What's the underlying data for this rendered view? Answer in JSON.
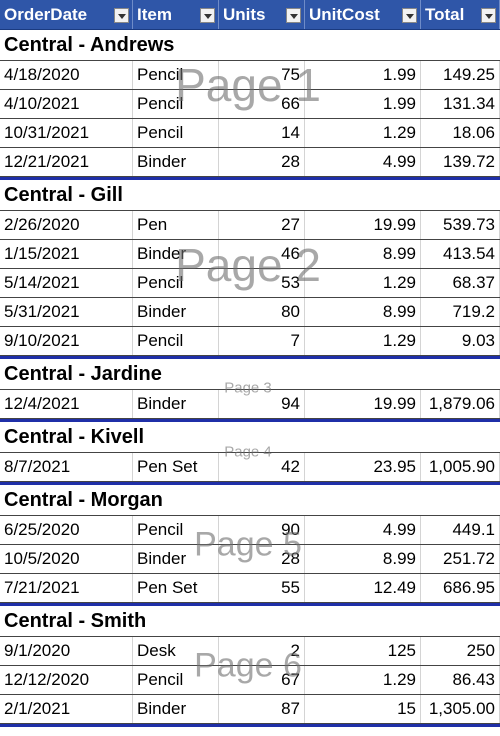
{
  "header": [
    "OrderDate",
    "Item",
    "Units",
    "UnitCost",
    "Total"
  ],
  "groups": [
    {
      "title": "Central - Andrews",
      "watermark": "Page 1",
      "rows": [
        [
          "4/18/2020",
          "Pencil",
          "75",
          "1.99",
          "149.25"
        ],
        [
          "4/10/2021",
          "Pencil",
          "66",
          "1.99",
          "131.34"
        ],
        [
          "10/31/2021",
          "Pencil",
          "14",
          "1.29",
          "18.06"
        ],
        [
          "12/21/2021",
          "Binder",
          "28",
          "4.99",
          "139.72"
        ]
      ]
    },
    {
      "title": "Central - Gill",
      "watermark": "Page 2",
      "rows": [
        [
          "2/26/2020",
          "Pen",
          "27",
          "19.99",
          "539.73"
        ],
        [
          "1/15/2021",
          "Binder",
          "46",
          "8.99",
          "413.54"
        ],
        [
          "5/14/2021",
          "Pencil",
          "53",
          "1.29",
          "68.37"
        ],
        [
          "5/31/2021",
          "Binder",
          "80",
          "8.99",
          "719.2"
        ],
        [
          "9/10/2021",
          "Pencil",
          "7",
          "1.29",
          "9.03"
        ]
      ]
    },
    {
      "title": "Central - Jardine",
      "watermark": "Page 3",
      "rows": [
        [
          "12/4/2021",
          "Binder",
          "94",
          "19.99",
          "1,879.06"
        ]
      ]
    },
    {
      "title": "Central - Kivell",
      "watermark": "Page 4",
      "rows": [
        [
          "8/7/2021",
          "Pen Set",
          "42",
          "23.95",
          "1,005.90"
        ]
      ]
    },
    {
      "title": "Central - Morgan",
      "watermark": "Page 5",
      "rows": [
        [
          "6/25/2020",
          "Pencil",
          "90",
          "4.99",
          "449.1"
        ],
        [
          "10/5/2020",
          "Binder",
          "28",
          "8.99",
          "251.72"
        ],
        [
          "7/21/2021",
          "Pen Set",
          "55",
          "12.49",
          "686.95"
        ]
      ]
    },
    {
      "title": "Central - Smith",
      "watermark": "Page 6",
      "rows": [
        [
          "9/1/2020",
          "Desk",
          "2",
          "125",
          "250"
        ],
        [
          "12/12/2020",
          "Pencil",
          "67",
          "1.29",
          "86.43"
        ],
        [
          "2/1/2021",
          "Binder",
          "87",
          "15",
          "1,305.00"
        ]
      ]
    }
  ]
}
